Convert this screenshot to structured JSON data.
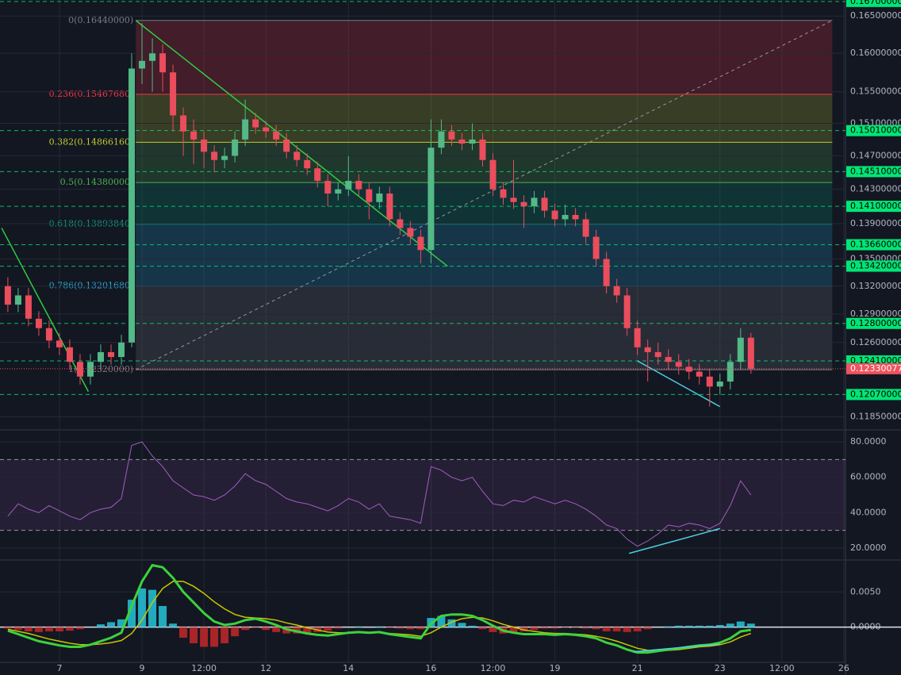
{
  "chart_data": [
    {
      "type": "candlestick",
      "log": true,
      "grid": true,
      "ylim": [
        0.1173,
        0.1672
      ],
      "yticks": [
        {
          "value": 0.165,
          "label": "0.16500000"
        },
        {
          "value": 0.16,
          "label": "0.16000000"
        },
        {
          "value": 0.155,
          "label": "0.15500000"
        },
        {
          "value": 0.151,
          "label": "0.15100000"
        },
        {
          "value": 0.147,
          "label": "0.14700000"
        },
        {
          "value": 0.143,
          "label": "0.14300000"
        },
        {
          "value": 0.139,
          "label": "0.13900000"
        },
        {
          "value": 0.135,
          "label": "0.13500000"
        },
        {
          "value": 0.132,
          "label": "0.13200000"
        },
        {
          "value": 0.129,
          "label": "0.12900000"
        },
        {
          "value": 0.126,
          "label": "0.12600000"
        },
        {
          "value": 0.1185,
          "label": "0.11850000"
        }
      ],
      "up_color": "#53b987",
      "down_color": "#eb4d5c",
      "x": [
        5.75,
        6,
        6.25,
        6.5,
        6.75,
        7,
        7.25,
        7.5,
        7.75,
        8,
        8.25,
        8.5,
        8.75,
        9,
        9.25,
        9.5,
        9.75,
        10,
        10.25,
        10.5,
        10.75,
        11,
        11.25,
        11.5,
        11.75,
        12,
        12.25,
        12.5,
        12.75,
        13,
        13.25,
        13.5,
        13.75,
        14,
        14.25,
        14.5,
        14.75,
        15,
        15.25,
        15.5,
        15.75,
        16,
        16.25,
        16.5,
        16.75,
        17,
        17.25,
        17.5,
        17.75,
        18,
        18.25,
        18.5,
        18.75,
        19,
        19.25,
        19.5,
        19.75,
        20,
        20.25,
        20.5,
        20.75,
        21,
        21.25,
        21.5,
        21.75,
        22,
        22.25,
        22.5,
        22.75,
        23,
        23.25,
        23.5,
        23.75
      ],
      "ohlc": [
        [
          0.132,
          0.133,
          0.1292,
          0.13
        ],
        [
          0.13,
          0.1318,
          0.1292,
          0.131
        ],
        [
          0.131,
          0.1318,
          0.1277,
          0.1285
        ],
        [
          0.1285,
          0.1293,
          0.1267,
          0.1275
        ],
        [
          0.1275,
          0.1283,
          0.1254,
          0.1262
        ],
        [
          0.1262,
          0.127,
          0.1247,
          0.1255
        ],
        [
          0.1255,
          0.1263,
          0.1232,
          0.124
        ],
        [
          0.124,
          0.1248,
          0.1217,
          0.1225
        ],
        [
          0.1225,
          0.1248,
          0.1217,
          0.124
        ],
        [
          0.124,
          0.1258,
          0.1232,
          0.125
        ],
        [
          0.125,
          0.1258,
          0.1237,
          0.1245
        ],
        [
          0.1245,
          0.1268,
          0.1237,
          0.126
        ],
        [
          0.126,
          0.16,
          0.1255,
          0.158
        ],
        [
          0.158,
          0.164,
          0.156,
          0.159
        ],
        [
          0.159,
          0.162,
          0.155,
          0.16
        ],
        [
          0.16,
          0.1612,
          0.155,
          0.1575
        ],
        [
          0.1575,
          0.1585,
          0.15,
          0.152
        ],
        [
          0.152,
          0.153,
          0.147,
          0.15
        ],
        [
          0.15,
          0.1515,
          0.146,
          0.149
        ],
        [
          0.149,
          0.15,
          0.1455,
          0.1475
        ],
        [
          0.1475,
          0.1483,
          0.145,
          0.1465
        ],
        [
          0.1465,
          0.148,
          0.1455,
          0.147
        ],
        [
          0.147,
          0.15,
          0.1462,
          0.149
        ],
        [
          0.149,
          0.154,
          0.1482,
          0.1515
        ],
        [
          0.1515,
          0.1523,
          0.1497,
          0.1505
        ],
        [
          0.1505,
          0.1513,
          0.1492,
          0.15
        ],
        [
          0.15,
          0.1508,
          0.1482,
          0.149
        ],
        [
          0.149,
          0.1498,
          0.1467,
          0.1475
        ],
        [
          0.1475,
          0.1483,
          0.1457,
          0.1465
        ],
        [
          0.1465,
          0.1473,
          0.1447,
          0.1455
        ],
        [
          0.1455,
          0.1463,
          0.1432,
          0.144
        ],
        [
          0.144,
          0.1448,
          0.141,
          0.1425
        ],
        [
          0.1425,
          0.1438,
          0.1417,
          0.143
        ],
        [
          0.143,
          0.147,
          0.1422,
          0.144
        ],
        [
          0.144,
          0.1448,
          0.1422,
          0.143
        ],
        [
          0.143,
          0.1438,
          0.1395,
          0.1415
        ],
        [
          0.1415,
          0.1433,
          0.1407,
          0.1425
        ],
        [
          0.1425,
          0.1433,
          0.1387,
          0.1395
        ],
        [
          0.1395,
          0.1403,
          0.1377,
          0.1385
        ],
        [
          0.1385,
          0.1393,
          0.1367,
          0.1375
        ],
        [
          0.1375,
          0.1383,
          0.1345,
          0.136
        ],
        [
          0.136,
          0.1515,
          0.1345,
          0.148
        ],
        [
          0.148,
          0.1515,
          0.1472,
          0.15
        ],
        [
          0.15,
          0.1508,
          0.1482,
          0.149
        ],
        [
          0.149,
          0.1498,
          0.1477,
          0.1485
        ],
        [
          0.1485,
          0.151,
          0.1477,
          0.149
        ],
        [
          0.149,
          0.1498,
          0.1457,
          0.1465
        ],
        [
          0.1465,
          0.1473,
          0.1422,
          0.143
        ],
        [
          0.143,
          0.1438,
          0.1412,
          0.142
        ],
        [
          0.142,
          0.1465,
          0.1407,
          0.1415
        ],
        [
          0.1415,
          0.1423,
          0.1385,
          0.141
        ],
        [
          0.141,
          0.1428,
          0.1402,
          0.142
        ],
        [
          0.142,
          0.1428,
          0.1397,
          0.1405
        ],
        [
          0.1405,
          0.1413,
          0.1387,
          0.1395
        ],
        [
          0.1395,
          0.1412,
          0.1387,
          0.14
        ],
        [
          0.14,
          0.1408,
          0.1387,
          0.1395
        ],
        [
          0.1395,
          0.1403,
          0.1367,
          0.1375
        ],
        [
          0.1375,
          0.1383,
          0.1342,
          0.135
        ],
        [
          0.135,
          0.1358,
          0.1312,
          0.132
        ],
        [
          0.132,
          0.1328,
          0.1302,
          0.131
        ],
        [
          0.131,
          0.1318,
          0.1267,
          0.1275
        ],
        [
          0.1275,
          0.1283,
          0.1247,
          0.1255
        ],
        [
          0.1255,
          0.1263,
          0.122,
          0.125
        ],
        [
          0.125,
          0.126,
          0.1237,
          0.1245
        ],
        [
          0.1245,
          0.1253,
          0.1232,
          0.124
        ],
        [
          0.124,
          0.1248,
          0.1227,
          0.1235
        ],
        [
          0.1235,
          0.1243,
          0.1222,
          0.123
        ],
        [
          0.123,
          0.1238,
          0.1217,
          0.1225
        ],
        [
          0.1225,
          0.1233,
          0.1195,
          0.1215
        ],
        [
          0.1215,
          0.1228,
          0.1207,
          0.122
        ],
        [
          0.122,
          0.1248,
          0.1212,
          0.124
        ],
        [
          0.124,
          0.1275,
          0.1232,
          0.1265
        ],
        [
          0.1265,
          0.127,
          0.1228,
          0.1233
        ]
      ],
      "levels": [
        {
          "value": 0.167,
          "label": "0.16700000"
        },
        {
          "value": 0.1501,
          "label": "0.15010000"
        },
        {
          "value": 0.1451,
          "label": "0.14510000"
        },
        {
          "value": 0.141,
          "label": "0.14100000"
        },
        {
          "value": 0.1366,
          "label": "0.13660000"
        },
        {
          "value": 0.1342,
          "label": "0.13420000"
        },
        {
          "value": 0.128,
          "label": "0.12800000"
        },
        {
          "value": 0.1241,
          "label": "0.12410000"
        },
        {
          "value": 0.1207,
          "label": "0.12070000"
        }
      ],
      "level_color": "#00e676",
      "last_price": {
        "value": 0.12330077,
        "label": "0.12330077"
      },
      "last_color": "#f0535f",
      "fib": {
        "x_range": [
          8.85,
          25.72
        ],
        "levels": [
          {
            "value": 0.1644,
            "label": "0(0.16440000)"
          },
          {
            "value": 0.1546768,
            "label": "0.236(0.15467680)"
          },
          {
            "value": 0.1486616,
            "label": "0.382(0.14866160)"
          },
          {
            "value": 0.1438,
            "label": "0.5(0.14380000)"
          },
          {
            "value": 0.1389384,
            "label": "0.618(0.13893840)"
          },
          {
            "value": 0.1320168,
            "label": "0.786(0.13201680)"
          },
          {
            "value": 0.1232,
            "label": "1(0.12320000)"
          }
        ],
        "colors": [
          "#787b86",
          "#f23645",
          "#c0ca33",
          "#4caf50",
          "#089981",
          "#26a6d1",
          "#787b86"
        ]
      },
      "trendlines": [
        {
          "from": [
            8.85,
            0.1644
          ],
          "to": [
            16.4,
            0.1342
          ],
          "color": "#2ecc40",
          "dashed": false
        },
        {
          "from": [
            5.6,
            0.1385
          ],
          "to": [
            7.7,
            0.121
          ],
          "color": "#2ecc40",
          "dashed": false
        },
        {
          "from": [
            8.85,
            0.1232
          ],
          "to": [
            25.72,
            0.1644
          ],
          "color": "#9598a1",
          "dashed": true
        },
        {
          "from": [
            21,
            0.1241
          ],
          "to": [
            23,
            0.1195
          ],
          "color": "#4dd0e1",
          "dashed": false
        }
      ]
    },
    {
      "type": "line",
      "grid": true,
      "color": "#a35dc1",
      "ylim": [
        13.7,
        86.3
      ],
      "yticks": [
        {
          "value": 80,
          "label": "80.0000"
        },
        {
          "value": 60,
          "label": "60.0000"
        },
        {
          "value": 40,
          "label": "40.0000"
        },
        {
          "value": 20,
          "label": "20.0000"
        }
      ],
      "bands": [
        70,
        30
      ],
      "values": [
        38,
        45,
        42,
        40,
        44,
        41,
        38,
        36,
        40,
        42,
        43,
        48,
        78,
        80,
        72,
        66,
        58,
        54,
        50,
        49,
        47,
        50,
        55,
        62,
        58,
        56,
        52,
        48,
        46,
        45,
        43,
        41,
        44,
        48,
        46,
        42,
        45,
        38,
        37,
        36,
        34,
        66,
        64,
        60,
        58,
        60,
        52,
        45,
        44,
        47,
        46,
        49,
        47,
        45,
        47,
        45,
        42,
        38,
        33,
        31,
        25,
        21,
        24,
        28,
        33,
        32,
        34,
        33,
        31,
        34,
        44,
        58,
        50
      ],
      "trendlines": [
        {
          "from": [
            20.8,
            17
          ],
          "to": [
            23,
            31
          ],
          "color": "#4dd0e1",
          "dashed": false
        }
      ]
    },
    {
      "type": "macd",
      "grid": true,
      "ylim": [
        -0.005,
        0.00943
      ],
      "yticks": [
        {
          "value": 0.005,
          "label": "0.0050"
        },
        {
          "value": 0,
          "label": "0.0000"
        }
      ],
      "xlim": [
        5.56,
        26.04
      ],
      "xticks": [
        7,
        9,
        {
          "value": 10.5,
          "label": "12:00"
        },
        12,
        14,
        16,
        {
          "value": 17.5,
          "label": "12:00"
        },
        19,
        21,
        23,
        {
          "value": 24.5,
          "label": "12:00"
        },
        26
      ],
      "macd": [
        -0.0005,
        -0.001,
        -0.0015,
        -0.002,
        -0.0023,
        -0.0026,
        -0.0028,
        -0.0028,
        -0.0025,
        -0.002,
        -0.0015,
        -0.0008,
        0.003,
        0.0065,
        0.0088,
        0.0085,
        0.007,
        0.005,
        0.0035,
        0.002,
        0.0008,
        0.0003,
        0.0005,
        0.001,
        0.0012,
        0.0008,
        0.0003,
        -0.0003,
        -0.0006,
        -0.0009,
        -0.0011,
        -0.0012,
        -0.001,
        -0.0008,
        -0.0007,
        -0.0008,
        -0.0007,
        -0.001,
        -0.0012,
        -0.0014,
        -0.0016,
        0.0005,
        0.0016,
        0.0018,
        0.0018,
        0.0016,
        0.001,
        0.0002,
        -0.0005,
        -0.0008,
        -0.001,
        -0.001,
        -0.001,
        -0.0011,
        -0.001,
        -0.0011,
        -0.0013,
        -0.0016,
        -0.0022,
        -0.0026,
        -0.0032,
        -0.0036,
        -0.0036,
        -0.0034,
        -0.0032,
        -0.003,
        -0.0028,
        -0.0026,
        -0.0025,
        -0.0022,
        -0.0016,
        -0.0006,
        -0.0004
      ],
      "signal": [
        -0.0003,
        -0.0006,
        -0.0009,
        -0.0013,
        -0.0017,
        -0.002,
        -0.0023,
        -0.0025,
        -0.0025,
        -0.0024,
        -0.0022,
        -0.0019,
        -0.0009,
        0.001,
        0.0035,
        0.0055,
        0.0065,
        0.0065,
        0.0058,
        0.0048,
        0.0036,
        0.0026,
        0.0018,
        0.0014,
        0.0013,
        0.0012,
        0.001,
        0.0006,
        0.0003,
        -0.0001,
        -0.0004,
        -0.0007,
        -0.0008,
        -0.0008,
        -0.0008,
        -0.0008,
        -0.0008,
        -0.0009,
        -0.001,
        -0.0011,
        -0.0013,
        -0.0008,
        0,
        0.0007,
        0.0012,
        0.0014,
        0.0013,
        0.0009,
        0.0004,
        0,
        -0.0004,
        -0.0006,
        -0.0008,
        -0.0009,
        -0.0009,
        -0.001,
        -0.0011,
        -0.0013,
        -0.0016,
        -0.002,
        -0.0025,
        -0.003,
        -0.0033,
        -0.0034,
        -0.0033,
        -0.0032,
        -0.003,
        -0.0028,
        -0.0027,
        -0.0025,
        -0.0021,
        -0.0014,
        -0.0009
      ],
      "histogram": [
        -0.0002,
        -0.0004,
        -0.0006,
        -0.0007,
        -0.0006,
        -0.0006,
        -0.0005,
        -0.0003,
        0,
        0.0004,
        0.0007,
        0.0011,
        0.0039,
        0.0055,
        0.0053,
        0.003,
        0.0005,
        -0.0015,
        -0.0023,
        -0.0028,
        -0.0028,
        -0.0023,
        -0.0013,
        -0.0004,
        -0.0001,
        -0.0004,
        -0.0007,
        -0.0009,
        -0.0009,
        -0.0008,
        -0.0007,
        -0.0005,
        -0.0002,
        0,
        0.0001,
        0,
        0.0001,
        -0.0001,
        -0.0002,
        -0.0003,
        -0.0003,
        0.0013,
        0.0016,
        0.0011,
        0.0006,
        0.0002,
        -0.0003,
        -0.0007,
        -0.0009,
        -0.0008,
        -0.0006,
        -0.0004,
        -0.0002,
        -0.0002,
        -0.0001,
        -0.0001,
        -0.0002,
        -0.0003,
        -0.0006,
        -0.0006,
        -0.0007,
        -0.0006,
        -0.0003,
        0,
        0.0001,
        0.0002,
        0.0002,
        0.0002,
        0.0002,
        0.0003,
        0.0005,
        0.0008,
        0.0005
      ],
      "macd_color": "#3cd23c",
      "signal_color": "#c8c800",
      "hist_up_color": "#26c6da",
      "hist_down_color": "#c62828",
      "trendlines": [
        {
          "from": [
            20.9,
            -0.0035
          ],
          "to": [
            23,
            -0.0024
          ],
          "color": "#4dd0e1",
          "dashed": false
        }
      ]
    }
  ]
}
